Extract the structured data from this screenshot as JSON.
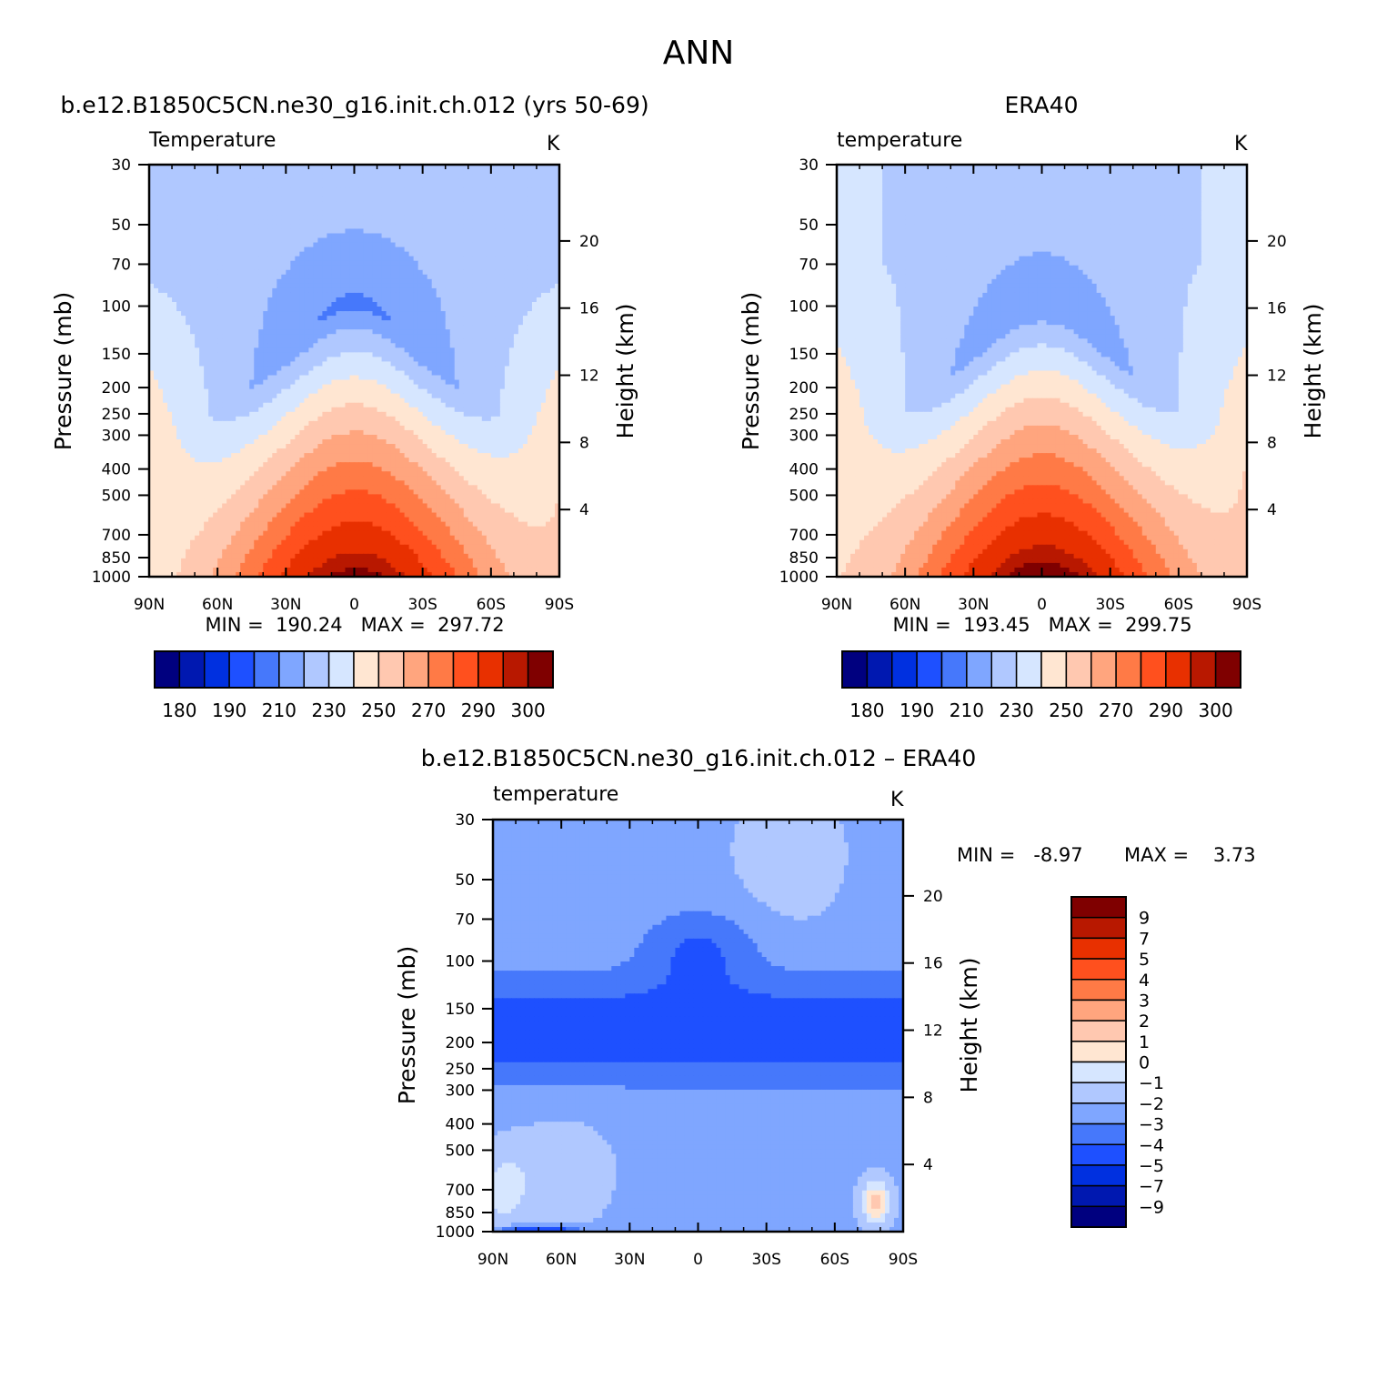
{
  "figure": {
    "title": "ANN"
  },
  "palettes": {
    "abs_colors": [
      "#00007f",
      "#0018b0",
      "#0030e0",
      "#1e50ff",
      "#4678fb",
      "#7fa6ff",
      "#b0c8ff",
      "#d6e6ff",
      "#ffe6d2",
      "#ffc8b0",
      "#ffa57e",
      "#ff7a46",
      "#ff501e",
      "#e83000",
      "#b81800",
      "#7f0000"
    ],
    "diff_colors": [
      "#00007f",
      "#0018b0",
      "#0030e0",
      "#1e50ff",
      "#4678fb",
      "#7fa6ff",
      "#b0c8ff",
      "#d6e6ff",
      "#ffe6d2",
      "#ffc8b0",
      "#ffa57e",
      "#ff7a46",
      "#ff501e",
      "#e83000",
      "#b81800",
      "#7f0000"
    ]
  },
  "chart_data": [
    {
      "type": "heatmap",
      "panel": "model",
      "title": "b.e12.B1850C5CN.ne30_g16.init.ch.012 (yrs 50-69)",
      "left_label": "Temperature",
      "units": "K",
      "ylabel": "Pressure (mb)",
      "y2label": "Height (km)",
      "x_ticks": [
        "90N",
        "60N",
        "30N",
        "0",
        "30S",
        "60S",
        "90S"
      ],
      "y_ticks": [
        "30",
        "50",
        "70",
        "100",
        "150",
        "200",
        "250",
        "300",
        "400",
        "500",
        "700",
        "850",
        "1000"
      ],
      "y2_ticks": [
        "20",
        "16",
        "12",
        "8",
        "4"
      ],
      "stats": "MIN =  190.24   MAX =  297.72",
      "colorbar_labels": [
        "180",
        "190",
        "210",
        "230",
        "250",
        "270",
        "290",
        "300"
      ],
      "levels": [
        175,
        180,
        185,
        190,
        200,
        210,
        220,
        230,
        240,
        250,
        260,
        270,
        280,
        290,
        295,
        300
      ],
      "params": {
        "t_surf": 297.7,
        "t_trop": 198,
        "trop_width": 40,
        "lapse_edge": 0.45,
        "strat_edge": 218,
        "asym": 0.06
      },
      "min": 190.24,
      "max": 297.72
    },
    {
      "type": "heatmap",
      "panel": "obs",
      "title": "ERA40",
      "left_label": "temperature",
      "units": "K",
      "ylabel": "Pressure (mb)",
      "y2label": "Height (km)",
      "x_ticks": [
        "90N",
        "60N",
        "30N",
        "0",
        "30S",
        "60S",
        "90S"
      ],
      "y_ticks": [
        "30",
        "50",
        "70",
        "100",
        "150",
        "200",
        "250",
        "300",
        "400",
        "500",
        "700",
        "850",
        "1000"
      ],
      "y2_ticks": [
        "20",
        "16",
        "12",
        "8",
        "4"
      ],
      "stats": "MIN =  193.45   MAX =  299.75",
      "colorbar_labels": [
        "180",
        "190",
        "210",
        "230",
        "250",
        "270",
        "290",
        "300"
      ],
      "levels": [
        175,
        180,
        185,
        190,
        200,
        210,
        220,
        230,
        240,
        250,
        260,
        270,
        280,
        290,
        295,
        300
      ],
      "params": {
        "t_surf": 299.7,
        "t_trop": 201,
        "trop_width": 38,
        "lapse_edge": 0.43,
        "strat_edge": 222,
        "asym": 0.04
      },
      "min": 193.45,
      "max": 299.75
    },
    {
      "type": "heatmap",
      "panel": "difference",
      "title": "b.e12.B1850C5CN.ne30_g16.init.ch.012 – ERA40",
      "left_label": "temperature",
      "units": "K",
      "ylabel": "Pressure (mb)",
      "y2label": "Height (km)",
      "x_ticks": [
        "90N",
        "60N",
        "30N",
        "0",
        "30S",
        "60S",
        "90S"
      ],
      "y_ticks": [
        "30",
        "50",
        "70",
        "100",
        "150",
        "200",
        "250",
        "300",
        "400",
        "500",
        "700",
        "850",
        "1000"
      ],
      "y2_ticks": [
        "20",
        "16",
        "12",
        "8",
        "4"
      ],
      "stats_min": "MIN =   -8.97",
      "stats_max": "MAX =    3.73",
      "colorbar_labels": [
        "9",
        "7",
        "5",
        "4",
        "3",
        "2",
        "1",
        "0",
        "−1",
        "−2",
        "−3",
        "−4",
        "−5",
        "−7",
        "−9"
      ],
      "levels": [
        -9,
        -7,
        -5,
        -4,
        -3,
        -2,
        -1,
        0,
        1,
        2,
        3,
        4,
        5,
        7,
        9
      ],
      "min": -8.97,
      "max": 3.73
    }
  ]
}
